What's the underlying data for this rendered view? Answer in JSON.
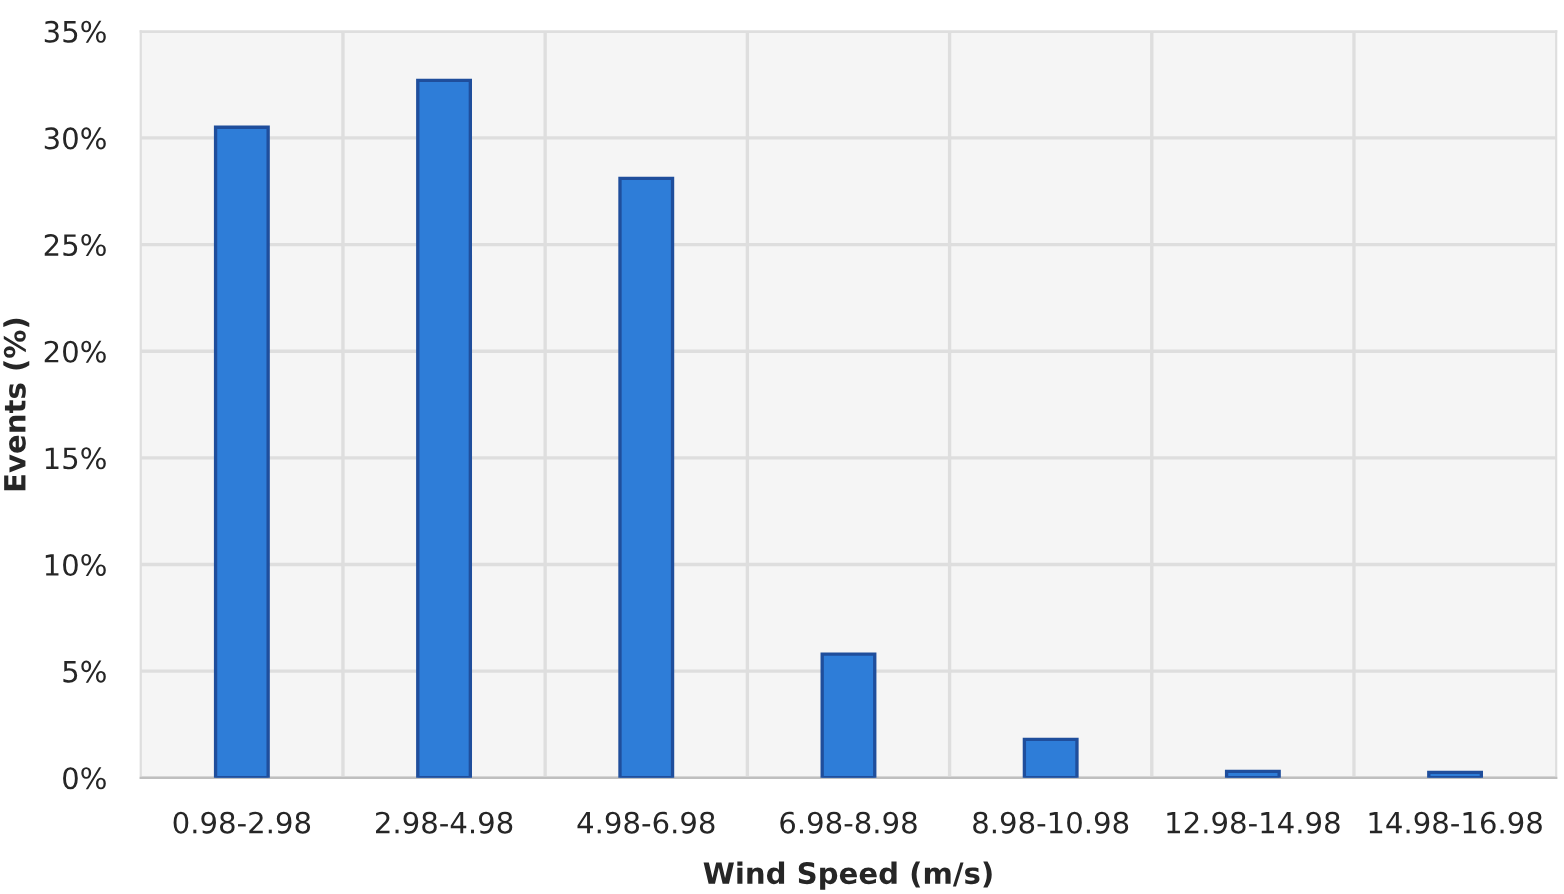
{
  "chart_data": {
    "type": "bar",
    "xlabel": "Wind Speed (m/s)",
    "ylabel": "Events (%)",
    "categories": [
      "0.98-2.98",
      "2.98-4.98",
      "4.98-6.98",
      "6.98-8.98",
      "8.98-10.98",
      "12.98-14.98",
      "14.98-16.98"
    ],
    "values": [
      30.5,
      32.7,
      28.1,
      5.8,
      1.8,
      0.3,
      0.25
    ],
    "color": "#2e7dd8",
    "ylim": [
      0,
      35
    ],
    "yticks": [
      {
        "value": 0,
        "label": "0%"
      },
      {
        "value": 5,
        "label": "5%"
      },
      {
        "value": 10,
        "label": "10%"
      },
      {
        "value": 15,
        "label": "15%"
      },
      {
        "value": 20,
        "label": "20%"
      },
      {
        "value": 25,
        "label": "25%"
      },
      {
        "value": 30,
        "label": "30%"
      },
      {
        "value": 35,
        "label": "35%"
      }
    ],
    "grid": true
  }
}
